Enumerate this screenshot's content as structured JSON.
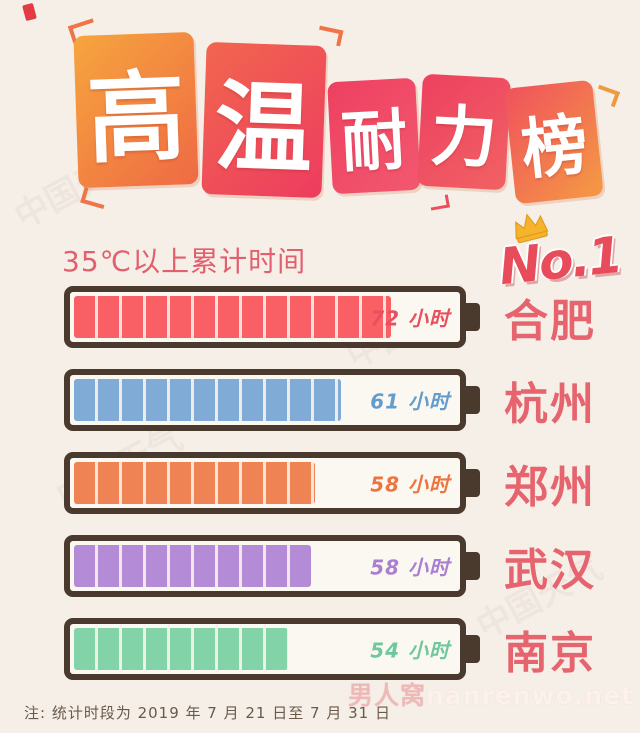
{
  "header": {
    "title": "高温耐力榜",
    "title_chars": [
      "高",
      "温",
      "耐",
      "力",
      "榜"
    ],
    "subtitle": "35℃以上累计时间",
    "badge": {
      "label": "No.1",
      "rank_city": "合肥"
    }
  },
  "chart_data": {
    "type": "bar",
    "style": "battery-gauge",
    "orientation": "horizontal",
    "title": "高温耐力榜",
    "subtitle": "35℃以上累计时间",
    "unit": "小时",
    "categories": [
      "合肥",
      "杭州",
      "郑州",
      "武汉",
      "南京"
    ],
    "values": [
      72,
      61,
      58,
      58,
      54
    ],
    "legend": "none",
    "bars": [
      {
        "rank": 1,
        "city": "合肥",
        "hours": 72,
        "value_label": "72 小时",
        "fill_percent": 83,
        "fill_color": "#f96066",
        "value_color": "#e84f5f"
      },
      {
        "rank": 2,
        "city": "杭州",
        "hours": 61,
        "value_label": "61 小时",
        "fill_percent": 70,
        "fill_color": "#7fabd6",
        "value_color": "#649ccd"
      },
      {
        "rank": 3,
        "city": "郑州",
        "hours": 58,
        "value_label": "58 小时",
        "fill_percent": 63,
        "fill_color": "#f08353",
        "value_color": "#ec7440"
      },
      {
        "rank": 4,
        "city": "武汉",
        "hours": 58,
        "value_label": "58 小时",
        "fill_percent": 62,
        "fill_color": "#b48bd6",
        "value_color": "#a97fd0"
      },
      {
        "rank": 5,
        "city": "南京",
        "hours": 54,
        "value_label": "54 小时",
        "fill_percent": 56,
        "fill_color": "#83d3a9",
        "value_color": "#6fc79d"
      }
    ],
    "colors": {
      "background": "#f5efe8",
      "battery_border": "#4a392d",
      "battery_interior": "#fbf8f1",
      "city_label": "#e5646e",
      "subtitle": "#e2606e",
      "badge_red": "#e84b5a",
      "crown_gold": "#f6b32c"
    }
  },
  "footer": {
    "note": "注: 统计时段为 2019 年 7 月 21 日至 7 月 31 日"
  },
  "watermarks": {
    "site_cn": "男人窝",
    "site_en": "nanrenwo.net",
    "faint": "中国天气"
  }
}
